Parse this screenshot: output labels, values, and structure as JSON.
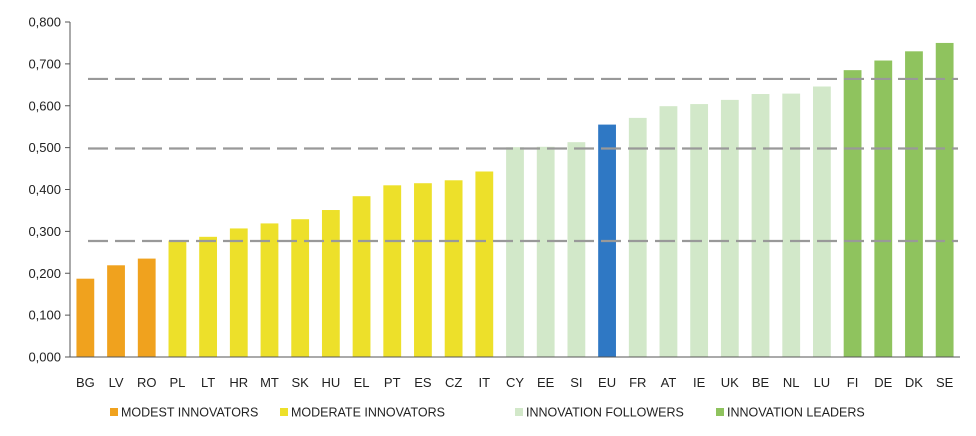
{
  "chart_data": {
    "type": "bar",
    "categories": [
      "BG",
      "LV",
      "RO",
      "PL",
      "LT",
      "HR",
      "MT",
      "SK",
      "HU",
      "EL",
      "PT",
      "ES",
      "CZ",
      "IT",
      "CY",
      "EE",
      "SI",
      "EU",
      "FR",
      "AT",
      "IE",
      "UK",
      "BE",
      "NL",
      "LU",
      "FI",
      "DE",
      "DK",
      "SE"
    ],
    "values": [
      0.187,
      0.219,
      0.235,
      0.278,
      0.287,
      0.307,
      0.319,
      0.329,
      0.351,
      0.384,
      0.41,
      0.415,
      0.422,
      0.443,
      0.501,
      0.502,
      0.513,
      0.555,
      0.571,
      0.599,
      0.604,
      0.614,
      0.628,
      0.629,
      0.646,
      0.685,
      0.708,
      0.73,
      0.75
    ],
    "groups": [
      "modest",
      "modest",
      "modest",
      "moderate",
      "moderate",
      "moderate",
      "moderate",
      "moderate",
      "moderate",
      "moderate",
      "moderate",
      "moderate",
      "moderate",
      "moderate",
      "follower",
      "follower",
      "follower",
      "eu",
      "follower",
      "follower",
      "follower",
      "follower",
      "follower",
      "follower",
      "follower",
      "leader",
      "leader",
      "leader",
      "leader"
    ],
    "colors": {
      "modest": "#f0a21e",
      "moderate": "#ede02a",
      "follower": "#d2e8c9",
      "eu": "#2f78c4",
      "leader": "#8fc35e"
    },
    "ylim": [
      0,
      0.8
    ],
    "yticks": [
      "0,000",
      "0,100",
      "0,200",
      "0,300",
      "0,400",
      "0,500",
      "0,600",
      "0,700",
      "0,800"
    ],
    "thresholds": [
      0.277,
      0.498,
      0.664
    ],
    "threshold_color": "#999999",
    "legend": [
      {
        "label": "MODEST INNOVATORS",
        "group": "modest"
      },
      {
        "label": "MODERATE INNOVATORS",
        "group": "moderate"
      },
      {
        "label": "INNOVATION FOLLOWERS",
        "group": "follower"
      },
      {
        "label": "INNOVATION LEADERS",
        "group": "leader"
      }
    ],
    "legend_position": "bottom",
    "grid": false
  }
}
